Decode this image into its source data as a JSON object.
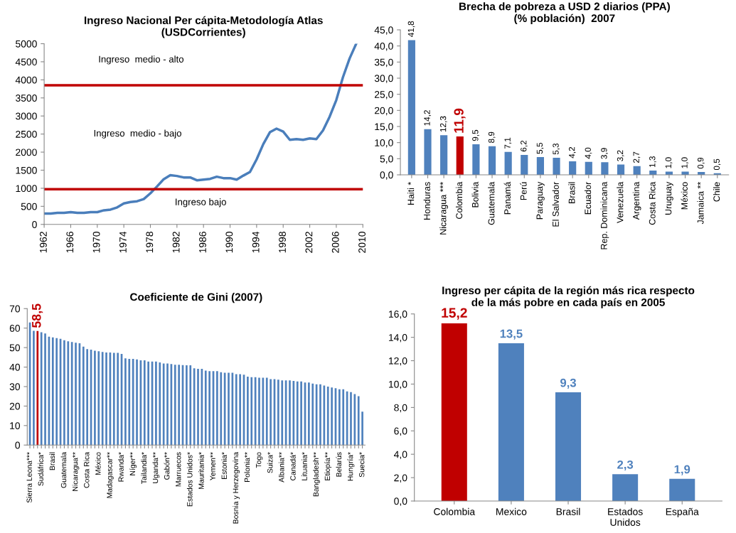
{
  "chart_data": [
    {
      "type": "line",
      "title": "Ingreso Nacional Per cápita-Metodología Atlas\n(USDCorrientes)",
      "x": [
        1962,
        1963,
        1964,
        1965,
        1966,
        1967,
        1968,
        1969,
        1970,
        1971,
        1972,
        1973,
        1974,
        1975,
        1976,
        1977,
        1978,
        1979,
        1980,
        1981,
        1982,
        1983,
        1984,
        1985,
        1986,
        1987,
        1988,
        1989,
        1990,
        1991,
        1992,
        1993,
        1994,
        1995,
        1996,
        1997,
        1998,
        1999,
        2000,
        2001,
        2002,
        2003,
        2004,
        2005,
        2006,
        2007,
        2008,
        2009
      ],
      "series": [
        {
          "color": "#4a7ebb",
          "values": [
            300,
            300,
            320,
            320,
            340,
            320,
            320,
            340,
            340,
            390,
            410,
            470,
            580,
            620,
            640,
            700,
            860,
            1050,
            1250,
            1360,
            1340,
            1300,
            1300,
            1220,
            1240,
            1260,
            1320,
            1280,
            1280,
            1240,
            1350,
            1450,
            1800,
            2220,
            2550,
            2650,
            2570,
            2340,
            2360,
            2340,
            2380,
            2360,
            2600,
            2980,
            3440,
            4070,
            4590,
            5000
          ]
        }
      ],
      "xlim": [
        1962,
        2010
      ],
      "xticks": [
        1962,
        1966,
        1970,
        1974,
        1978,
        1982,
        1986,
        1990,
        1994,
        1998,
        2002,
        2006,
        2010
      ],
      "ylim": [
        0,
        5000
      ],
      "yticks": [
        0,
        500,
        1000,
        1500,
        2000,
        2500,
        3000,
        3500,
        4000,
        4500,
        5000
      ],
      "ref_lines": [
        {
          "axis": "y",
          "value": 3850,
          "color": "#c00000"
        },
        {
          "axis": "y",
          "value": 975,
          "color": "#c00000"
        }
      ],
      "annotations": [
        "Ingreso  medio - alto",
        "Ingreso  medio - bajo",
        "Ingreso bajo"
      ],
      "grid": false,
      "legend": false,
      "marker": "none",
      "line_style": "solid"
    },
    {
      "type": "bar",
      "title": "Brecha de pobreza a USD 2 diarios (PPA)\n(% población)  2007",
      "categories": [
        "Haiti *",
        "Honduras",
        "Nicaragua ***",
        "Colombia",
        "Bolivia",
        "Guatemala",
        "Panamá",
        "Perú",
        "Paraguay",
        "El Salvador",
        "Brasil",
        "Ecuador",
        "Rep. Dominicana",
        "Venezuela",
        "Argentina",
        "Costa Rica",
        "Uruguay",
        "México",
        "Jamaica **",
        "Chile"
      ],
      "values": [
        41.8,
        14.2,
        12.3,
        11.9,
        9.5,
        8.9,
        7.1,
        6.2,
        5.5,
        5.3,
        4.2,
        4.0,
        3.9,
        3.2,
        2.7,
        1.3,
        1.0,
        1.0,
        0.9,
        0.5
      ],
      "value_labels": [
        "41,8",
        "14,2",
        "12,3",
        "11,9",
        "9,5",
        "8,9",
        "7,1",
        "6,2",
        "5,5",
        "5,3",
        "4,2",
        "4,0",
        "3,9",
        "3,2",
        "2,7",
        "1,3",
        "1,0",
        "1,0",
        "0,9",
        "0,5"
      ],
      "colors": [
        "#4f81bd",
        "#4f81bd",
        "#4f81bd",
        "#c00000",
        "#4f81bd",
        "#4f81bd",
        "#4f81bd",
        "#4f81bd",
        "#4f81bd",
        "#4f81bd",
        "#4f81bd",
        "#4f81bd",
        "#4f81bd",
        "#4f81bd",
        "#4f81bd",
        "#4f81bd",
        "#4f81bd",
        "#4f81bd",
        "#4f81bd",
        "#4f81bd"
      ],
      "ylim": [
        0,
        45
      ],
      "yticks": [
        {
          "value": 0,
          "label": "0,0"
        },
        {
          "value": 5,
          "label": "5,0"
        },
        {
          "value": 10,
          "label": "10,0"
        },
        {
          "value": 15,
          "label": "15,0"
        },
        {
          "value": 20,
          "label": "20,0"
        },
        {
          "value": 25,
          "label": "25,0"
        },
        {
          "value": 30,
          "label": "30,0"
        },
        {
          "value": 35,
          "label": "35,0"
        },
        {
          "value": 40,
          "label": "40,0"
        },
        {
          "value": 45,
          "label": "45,0"
        }
      ],
      "grid": false,
      "legend": false
    },
    {
      "type": "bar",
      "title": "Coeficiente de Gini (2007)",
      "categories": [
        "Sierra Leona***",
        null,
        null,
        "Sudáfrica*",
        null,
        null,
        "Brasil",
        null,
        null,
        "Guatemala",
        null,
        null,
        "Nicaragua**",
        null,
        null,
        "Costa Rica",
        null,
        null,
        "México",
        null,
        null,
        "Madagascar**",
        null,
        null,
        "Rwanda*",
        null,
        null,
        "Níger**",
        null,
        null,
        "Tailandia*",
        null,
        null,
        "Uganda**",
        null,
        null,
        "Gabón**",
        null,
        null,
        "Marruecos",
        null,
        null,
        "Estados Unidos*",
        null,
        null,
        "Mauritania*",
        null,
        null,
        "Yemen**",
        null,
        null,
        "Estonia*",
        null,
        null,
        "Bosnia y Herzegovina",
        null,
        null,
        "Polonia**",
        null,
        null,
        "Togo",
        null,
        null,
        "Suiza*",
        null,
        null,
        "Albania**",
        null,
        null,
        "Canadá*",
        null,
        null,
        "Lituania*",
        null,
        null,
        "Bangladesh**",
        null,
        null,
        "Etiopía**",
        null,
        null,
        "Belarús",
        null,
        null,
        "Hungría*",
        null,
        null,
        "Suecia*"
      ],
      "values": [
        62.9,
        58.6,
        58.5,
        57.9,
        57.2,
        55.6,
        55.2,
        54.9,
        54.5,
        53.8,
        53.2,
        52.9,
        52.5,
        52.2,
        50.5,
        49.2,
        48.9,
        48.4,
        48.1,
        47.8,
        47.5,
        47.5,
        47.3,
        47.3,
        46.8,
        44.5,
        44.2,
        44.2,
        43.9,
        43.5,
        43.5,
        42.8,
        42.8,
        42.8,
        42.4,
        41.8,
        41.8,
        41.6,
        41.2,
        41.2,
        41.0,
        40.9,
        40.9,
        39.4,
        39.1,
        39.1,
        38.2,
        37.9,
        37.9,
        37.9,
        37.4,
        37.1,
        37.1,
        37.1,
        36.4,
        36.4,
        36.1,
        35.1,
        34.8,
        34.8,
        34.5,
        34.5,
        34.5,
        33.8,
        33.8,
        33.5,
        33.2,
        33.2,
        33.2,
        32.9,
        32.6,
        32.6,
        32.1,
        32.1,
        31.5,
        31.2,
        31.2,
        30.5,
        30.0,
        29.5,
        29.2,
        28.6,
        28.6,
        27.5,
        27.2,
        26.2,
        25.1,
        17.1
      ],
      "value_labels": [
        null,
        null,
        "58,5",
        null,
        null,
        null,
        null,
        null,
        null,
        null,
        null,
        null,
        null,
        null,
        null,
        null,
        null,
        null,
        null,
        null,
        null,
        null,
        null,
        null,
        null,
        null,
        null,
        null,
        null,
        null,
        null,
        null,
        null,
        null,
        null,
        null,
        null,
        null,
        null,
        null,
        null,
        null,
        null,
        null,
        null,
        null,
        null,
        null,
        null,
        null,
        null,
        null,
        null,
        null,
        null,
        null,
        null,
        null,
        null,
        null,
        null,
        null,
        null,
        null,
        null,
        null,
        null,
        null,
        null,
        null,
        null,
        null,
        null,
        null,
        null,
        null,
        null,
        null,
        null,
        null,
        null,
        null,
        null,
        null,
        null,
        null,
        null,
        null
      ],
      "colors": [
        "#4f81bd",
        "#4f81bd",
        "#c00000",
        "#4f81bd",
        "#4f81bd",
        "#4f81bd",
        "#4f81bd",
        "#4f81bd",
        "#4f81bd",
        "#4f81bd",
        "#4f81bd",
        "#4f81bd",
        "#4f81bd",
        "#4f81bd",
        "#4f81bd",
        "#4f81bd",
        "#4f81bd",
        "#4f81bd",
        "#4f81bd",
        "#4f81bd",
        "#4f81bd",
        "#4f81bd",
        "#4f81bd",
        "#4f81bd",
        "#4f81bd",
        "#4f81bd",
        "#4f81bd",
        "#4f81bd",
        "#4f81bd",
        "#4f81bd",
        "#4f81bd",
        "#4f81bd",
        "#4f81bd",
        "#4f81bd",
        "#4f81bd",
        "#4f81bd",
        "#4f81bd",
        "#4f81bd",
        "#4f81bd",
        "#4f81bd",
        "#4f81bd",
        "#4f81bd",
        "#4f81bd",
        "#4f81bd",
        "#4f81bd",
        "#4f81bd",
        "#4f81bd",
        "#4f81bd",
        "#4f81bd",
        "#4f81bd",
        "#4f81bd",
        "#4f81bd",
        "#4f81bd",
        "#4f81bd",
        "#4f81bd",
        "#4f81bd",
        "#4f81bd",
        "#4f81bd",
        "#4f81bd",
        "#4f81bd",
        "#4f81bd",
        "#4f81bd",
        "#4f81bd",
        "#4f81bd",
        "#4f81bd",
        "#4f81bd",
        "#4f81bd",
        "#4f81bd",
        "#4f81bd",
        "#4f81bd",
        "#4f81bd",
        "#4f81bd",
        "#4f81bd",
        "#4f81bd",
        "#4f81bd",
        "#4f81bd",
        "#4f81bd",
        "#4f81bd",
        "#4f81bd",
        "#4f81bd",
        "#4f81bd",
        "#4f81bd",
        "#4f81bd",
        "#4f81bd",
        "#4f81bd",
        "#4f81bd",
        "#4f81bd",
        "#4f81bd"
      ],
      "ylim": [
        0,
        70
      ],
      "yticks": [
        0,
        10,
        20,
        30,
        40,
        50,
        60,
        70
      ],
      "grid": false,
      "legend": false
    },
    {
      "type": "bar",
      "title": "Ingreso per cápita de la región más rica respecto\nde la más pobre en cada país en 2005",
      "categories": [
        "Colombia",
        "Mexico",
        "Brasil",
        "Estados\nUnidos",
        "España"
      ],
      "values": [
        15.2,
        13.5,
        9.3,
        2.3,
        1.9
      ],
      "value_labels": [
        "15,2",
        "13,5",
        "9,3",
        "2,3",
        "1,9"
      ],
      "colors": [
        "#c00000",
        "#4f81bd",
        "#4f81bd",
        "#4f81bd",
        "#4f81bd"
      ],
      "ylim": [
        0,
        16
      ],
      "yticks": [
        {
          "value": 0,
          "label": "0,0"
        },
        {
          "value": 2,
          "label": "2,0"
        },
        {
          "value": 4,
          "label": "4,0"
        },
        {
          "value": 6,
          "label": "6,0"
        },
        {
          "value": 8,
          "label": "8,0"
        },
        {
          "value": 10,
          "label": "10,0"
        },
        {
          "value": 12,
          "label": "12,0"
        },
        {
          "value": 14,
          "label": "14,0"
        },
        {
          "value": 16,
          "label": "16,0"
        }
      ],
      "grid": false,
      "legend": false
    }
  ]
}
